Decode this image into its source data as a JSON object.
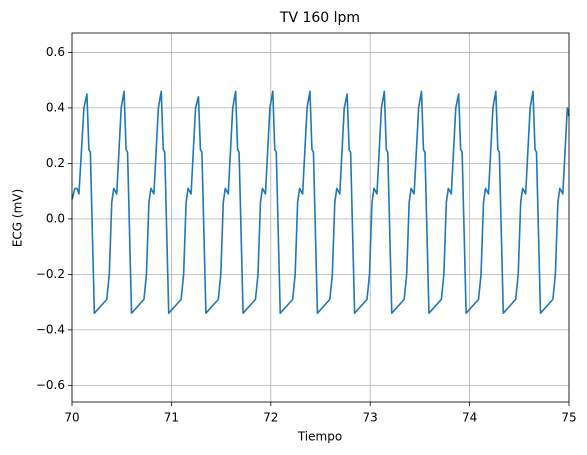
{
  "chart_data": {
    "type": "line",
    "title": "TV 160 lpm",
    "x_label": "Tiempo",
    "y_label": "ECG (mV)",
    "color": "#1f77b4",
    "grid": true,
    "xlim": [
      70,
      75
    ],
    "xticks": [
      70,
      71,
      72,
      73,
      74,
      75
    ],
    "ylim": [
      -0.66,
      0.67
    ],
    "yticks": [
      {
        "value": -0.6,
        "label": "−0.6"
      },
      {
        "value": -0.4,
        "label": "−0.4"
      },
      {
        "value": -0.2,
        "label": "−0.2"
      },
      {
        "value": 0,
        "label": "0.0"
      },
      0.2,
      0.4,
      0.6
    ],
    "x": [
      70.0,
      70.03,
      70.05,
      70.07,
      70.12,
      70.15,
      70.17,
      70.185,
      70.225,
      70.35,
      70.375,
      70.4,
      70.42,
      70.45,
      70.495,
      70.524,
      70.544,
      70.559,
      70.599,
      70.724,
      70.749,
      70.774,
      70.794,
      70.824,
      70.869,
      70.898,
      70.918,
      70.933,
      70.973,
      71.098,
      71.123,
      71.148,
      71.168,
      71.198,
      71.243,
      71.272,
      71.292,
      71.307,
      71.347,
      71.472,
      71.497,
      71.522,
      71.542,
      71.572,
      71.617,
      71.646,
      71.666,
      71.681,
      71.721,
      71.846,
      71.871,
      71.896,
      71.916,
      71.946,
      71.991,
      72.02,
      72.04,
      72.055,
      72.095,
      72.22,
      72.245,
      72.27,
      72.29,
      72.32,
      72.365,
      72.394,
      72.414,
      72.429,
      72.469,
      72.594,
      72.619,
      72.644,
      72.664,
      72.694,
      72.739,
      72.768,
      72.788,
      72.803,
      72.843,
      72.968,
      72.993,
      73.018,
      73.038,
      73.068,
      73.113,
      73.142,
      73.162,
      73.177,
      73.217,
      73.342,
      73.367,
      73.392,
      73.412,
      73.442,
      73.487,
      73.516,
      73.536,
      73.551,
      73.591,
      73.716,
      73.741,
      73.766,
      73.786,
      73.816,
      73.861,
      73.89,
      73.91,
      73.925,
      73.965,
      74.09,
      74.115,
      74.14,
      74.16,
      74.19,
      74.235,
      74.264,
      74.284,
      74.299,
      74.339,
      74.464,
      74.489,
      74.514,
      74.534,
      74.564,
      74.609,
      74.638,
      74.658,
      74.673,
      74.713,
      74.838,
      74.863,
      74.888,
      74.908,
      74.938,
      74.983,
      75.0
    ],
    "values": [
      0.07,
      0.11,
      0.11,
      0.09,
      0.4,
      0.45,
      0.25,
      0.24,
      -0.34,
      -0.29,
      -0.2,
      0.06,
      0.11,
      0.09,
      0.4,
      0.46,
      0.25,
      0.24,
      -0.34,
      -0.29,
      -0.2,
      0.06,
      0.11,
      0.09,
      0.4,
      0.46,
      0.25,
      0.24,
      -0.34,
      -0.29,
      -0.2,
      0.06,
      0.11,
      0.09,
      0.4,
      0.44,
      0.25,
      0.24,
      -0.34,
      -0.29,
      -0.2,
      0.06,
      0.11,
      0.09,
      0.4,
      0.46,
      0.25,
      0.24,
      -0.34,
      -0.29,
      -0.2,
      0.06,
      0.11,
      0.09,
      0.4,
      0.46,
      0.25,
      0.24,
      -0.34,
      -0.29,
      -0.2,
      0.06,
      0.11,
      0.09,
      0.4,
      0.46,
      0.25,
      0.24,
      -0.34,
      -0.29,
      -0.2,
      0.06,
      0.11,
      0.09,
      0.4,
      0.45,
      0.25,
      0.24,
      -0.34,
      -0.29,
      -0.2,
      0.06,
      0.11,
      0.09,
      0.4,
      0.46,
      0.25,
      0.24,
      -0.34,
      -0.29,
      -0.2,
      0.06,
      0.11,
      0.09,
      0.4,
      0.46,
      0.25,
      0.24,
      -0.34,
      -0.29,
      -0.2,
      0.06,
      0.11,
      0.09,
      0.4,
      0.45,
      0.25,
      0.24,
      -0.34,
      -0.29,
      -0.2,
      0.06,
      0.11,
      0.09,
      0.4,
      0.46,
      0.25,
      0.24,
      -0.34,
      -0.29,
      -0.2,
      0.06,
      0.11,
      0.09,
      0.4,
      0.46,
      0.25,
      0.24,
      -0.34,
      -0.29,
      -0.2,
      0.06,
      0.11,
      0.09,
      0.4,
      0.37
    ]
  }
}
